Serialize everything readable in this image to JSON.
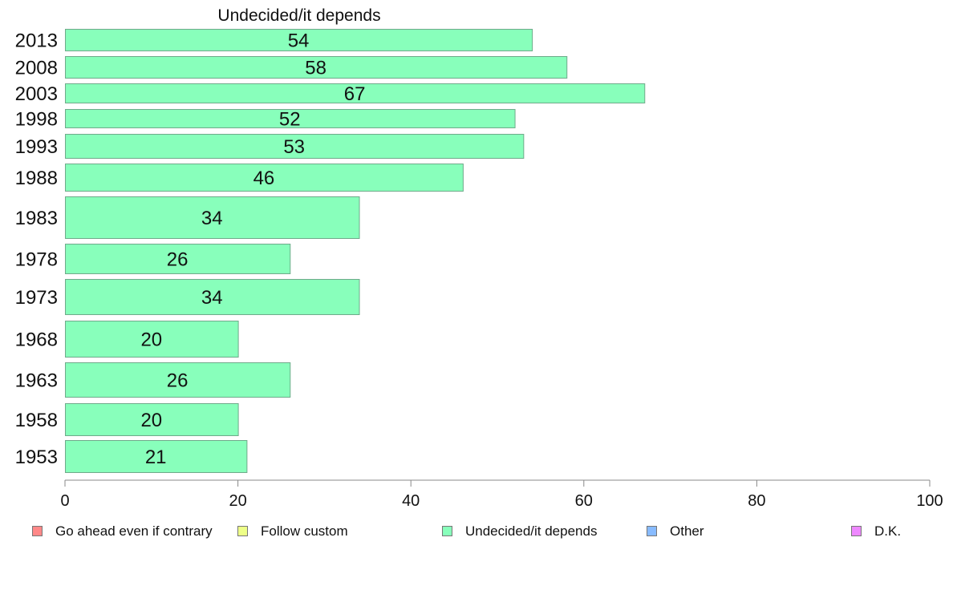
{
  "chart_data": {
    "type": "bar",
    "orientation": "horizontal",
    "title": "Undecided/it depends",
    "categories": [
      "2013",
      "2008",
      "2003",
      "1998",
      "1993",
      "1988",
      "1983",
      "1978",
      "1973",
      "1968",
      "1963",
      "1958",
      "1953"
    ],
    "series": [
      {
        "name": "Undecided/it depends",
        "color": "#88ffbb",
        "values": [
          54,
          58,
          67,
          52,
          53,
          46,
          34,
          26,
          34,
          20,
          26,
          20,
          21
        ],
        "data_labels": [
          "54",
          "58",
          "67",
          "52",
          "53",
          "46",
          "34",
          "26",
          "34",
          "20",
          "26",
          "20",
          "21"
        ]
      }
    ],
    "xlim": [
      0,
      100
    ],
    "x_ticks": [
      0,
      20,
      40,
      60,
      80,
      100
    ],
    "x_tick_labels": [
      "0",
      "20",
      "40",
      "60",
      "80",
      "100"
    ],
    "grid": false,
    "legend": {
      "placement": "bottom",
      "entries": [
        {
          "label": "Go ahead even if contrary",
          "color": "#ff8888"
        },
        {
          "label": "Follow custom",
          "color": "#eeff88"
        },
        {
          "label": "Undecided/it depends",
          "color": "#88ffbb"
        },
        {
          "label": "Other",
          "color": "#88bbff"
        },
        {
          "label": "D.K.",
          "color": "#ee88ff"
        }
      ]
    }
  }
}
